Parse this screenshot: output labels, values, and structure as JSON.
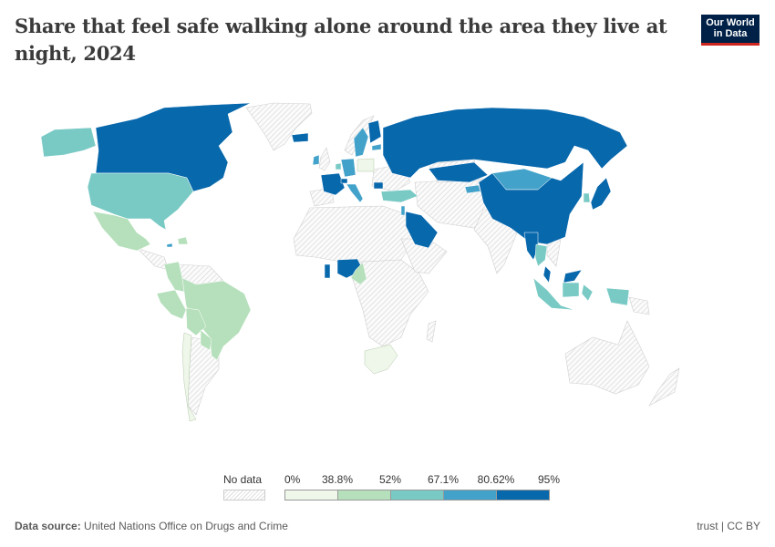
{
  "header": {
    "title": "Share that feel safe walking alone around the area they live at night, 2024",
    "logo_line1": "Our World",
    "logo_line2": "in Data"
  },
  "legend": {
    "no_data_label": "No data",
    "bins": [
      {
        "from_label": "0%",
        "color": "#eef7e9"
      },
      {
        "from_label": "38.8%",
        "color": "#b5e0bb"
      },
      {
        "from_label": "52%",
        "color": "#79cac5"
      },
      {
        "from_label": "67.1%",
        "color": "#43a2ca"
      },
      {
        "from_label": "80.62%",
        "color": "#0868ac"
      }
    ],
    "end_label": "95%"
  },
  "footer": {
    "source_label": "Data source:",
    "source_value": "United Nations Office on Drugs and Crime",
    "license": "trust | CC BY"
  },
  "chart_data": {
    "type": "choropleth",
    "title": "Share that feel safe walking alone around the area they live at night, 2024",
    "year": 2024,
    "unit": "%",
    "bins": [
      0,
      38.8,
      52,
      67.1,
      80.62,
      95
    ],
    "bin_colors": [
      "#eef7e9",
      "#b5e0bb",
      "#79cac5",
      "#43a2ca",
      "#0868ac"
    ],
    "no_data_color": "hatched",
    "countries": [
      {
        "name": "Canada",
        "bin": 4
      },
      {
        "name": "United States",
        "bin": 2
      },
      {
        "name": "Mexico",
        "bin": 1
      },
      {
        "name": "Dominican Republic",
        "bin": 1
      },
      {
        "name": "Jamaica",
        "bin": 3
      },
      {
        "name": "Colombia",
        "bin": 1
      },
      {
        "name": "Peru",
        "bin": 1
      },
      {
        "name": "Brazil",
        "bin": 1
      },
      {
        "name": "Bolivia",
        "bin": 1
      },
      {
        "name": "Paraguay",
        "bin": 1
      },
      {
        "name": "Chile",
        "bin": 0
      },
      {
        "name": "Iceland",
        "bin": 4
      },
      {
        "name": "Ireland",
        "bin": 3
      },
      {
        "name": "Sweden",
        "bin": 3
      },
      {
        "name": "Finland",
        "bin": 4
      },
      {
        "name": "Estonia",
        "bin": 3
      },
      {
        "name": "Germany",
        "bin": 3
      },
      {
        "name": "Netherlands",
        "bin": 2
      },
      {
        "name": "Poland",
        "bin": 0
      },
      {
        "name": "France",
        "bin": 4
      },
      {
        "name": "Switzerland",
        "bin": 4
      },
      {
        "name": "Italy",
        "bin": 3
      },
      {
        "name": "Bulgaria",
        "bin": 4
      },
      {
        "name": "Turkey",
        "bin": 2
      },
      {
        "name": "Russia",
        "bin": 4
      },
      {
        "name": "Kazakhstan",
        "bin": 4
      },
      {
        "name": "Kyrgyzstan",
        "bin": 3
      },
      {
        "name": "Mongolia",
        "bin": 3
      },
      {
        "name": "China",
        "bin": 4
      },
      {
        "name": "South Korea",
        "bin": 2
      },
      {
        "name": "Japan",
        "bin": 4
      },
      {
        "name": "Myanmar",
        "bin": 4
      },
      {
        "name": "Thailand",
        "bin": 2
      },
      {
        "name": "Malaysia",
        "bin": 4
      },
      {
        "name": "Indonesia",
        "bin": 2
      },
      {
        "name": "Saudi Arabia",
        "bin": 4
      },
      {
        "name": "Israel",
        "bin": 3
      },
      {
        "name": "Ghana",
        "bin": 4
      },
      {
        "name": "Nigeria",
        "bin": 4
      },
      {
        "name": "Cameroon",
        "bin": 1
      },
      {
        "name": "South Africa",
        "bin": 0
      }
    ]
  }
}
